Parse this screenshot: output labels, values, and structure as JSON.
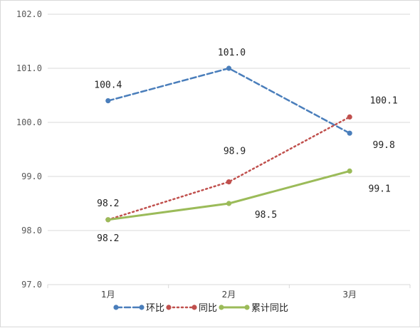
{
  "chart_data": {
    "type": "line",
    "categories": [
      "1月",
      "2月",
      "3月"
    ],
    "ylim": [
      97.0,
      102.0
    ],
    "yticks": [
      "97.0",
      "98.0",
      "99.0",
      "100.0",
      "101.0",
      "102.0"
    ],
    "grid": true,
    "legend_position": "bottom",
    "series": [
      {
        "name": "环比",
        "values": [
          100.4,
          101.0,
          99.8
        ],
        "labels": [
          "100.4",
          "101.0",
          "99.8"
        ],
        "color": "#4a7ebb",
        "style": "dashed"
      },
      {
        "name": "同比",
        "values": [
          98.2,
          98.9,
          100.1
        ],
        "labels": [
          "98.2",
          "98.9",
          "100.1"
        ],
        "color": "#c0504d",
        "style": "dotted"
      },
      {
        "name": "累计同比",
        "values": [
          98.2,
          98.5,
          99.1
        ],
        "labels": [
          "98.2",
          "98.5",
          "99.1"
        ],
        "color": "#9bbb59",
        "style": "solid"
      }
    ]
  }
}
